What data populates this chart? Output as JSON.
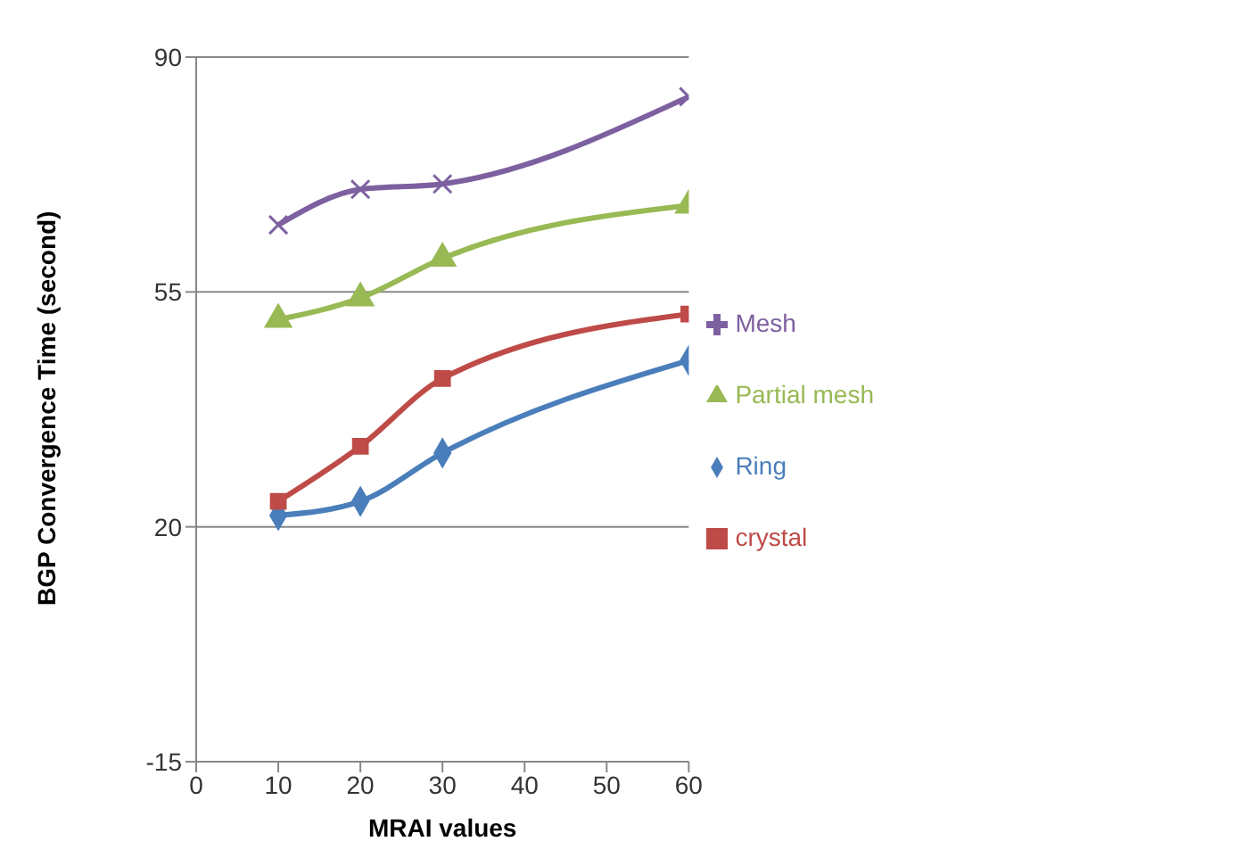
{
  "chart_data": {
    "type": "line",
    "xlabel": "MRAI values",
    "ylabel": "BGP Convergence Time (second)",
    "x": [
      10,
      20,
      30,
      60
    ],
    "xlim": [
      0,
      60
    ],
    "xticks": [
      0,
      10,
      20,
      30,
      40,
      50,
      60
    ],
    "ylim": [
      -15,
      90
    ],
    "yticks": [
      -15,
      20,
      55,
      90
    ],
    "grid": "y",
    "legend": "right",
    "series": [
      {
        "name": "Ring",
        "color": "#4a7ebb",
        "marker": "diamond",
        "values": [
          21.7,
          23.8,
          31,
          44.8
        ]
      },
      {
        "name": "crystal",
        "color": "#be4b48",
        "marker": "square",
        "values": [
          23.8,
          32,
          42.1,
          51.7
        ]
      },
      {
        "name": "Partial mesh",
        "color": "#98b954",
        "marker": "triangle",
        "values": [
          50.9,
          54.1,
          60,
          67.9
        ]
      },
      {
        "name": "Mesh",
        "color": "#7d60a0",
        "marker": "cross",
        "values": [
          65,
          70.3,
          71.1,
          84.1
        ]
      }
    ]
  }
}
